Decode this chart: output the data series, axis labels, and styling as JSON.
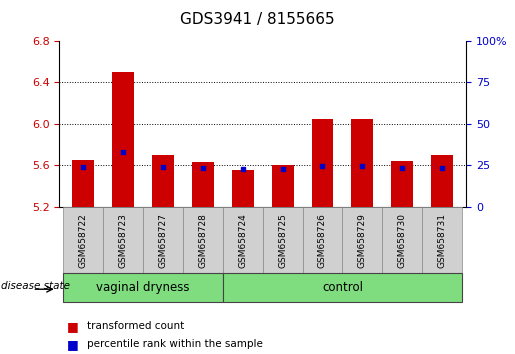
{
  "title": "GDS3941 / 8155665",
  "samples": [
    "GSM658722",
    "GSM658723",
    "GSM658727",
    "GSM658728",
    "GSM658724",
    "GSM658725",
    "GSM658726",
    "GSM658729",
    "GSM658730",
    "GSM658731"
  ],
  "bar_values": [
    5.65,
    6.5,
    5.7,
    5.63,
    5.56,
    5.6,
    6.05,
    6.05,
    5.64,
    5.7
  ],
  "bar_base": 5.2,
  "blue_dot_values": [
    5.59,
    5.73,
    5.59,
    5.575,
    5.57,
    5.57,
    5.595,
    5.595,
    5.58,
    5.578
  ],
  "ylim_left": [
    5.2,
    6.8
  ],
  "ylim_right": [
    0,
    100
  ],
  "yticks_left": [
    5.2,
    5.6,
    6.0,
    6.4,
    6.8
  ],
  "yticks_right": [
    0,
    25,
    50,
    75,
    100
  ],
  "bar_color": "#CC0000",
  "blue_dot_color": "#0000CC",
  "tick_label_color_left": "#CC0000",
  "tick_label_color_right": "#0000CC",
  "group_labels": [
    {
      "label": "vaginal dryness",
      "start": 0,
      "end": 4
    },
    {
      "label": "control",
      "start": 4,
      "end": 10
    }
  ],
  "legend": [
    {
      "color": "#CC0000",
      "label": "transformed count"
    },
    {
      "color": "#0000CC",
      "label": "percentile rank within the sample"
    }
  ],
  "disease_state_label": "disease state",
  "title_fontsize": 11,
  "tick_fontsize": 8,
  "sample_fontsize": 6.5,
  "group_fontsize": 8.5
}
